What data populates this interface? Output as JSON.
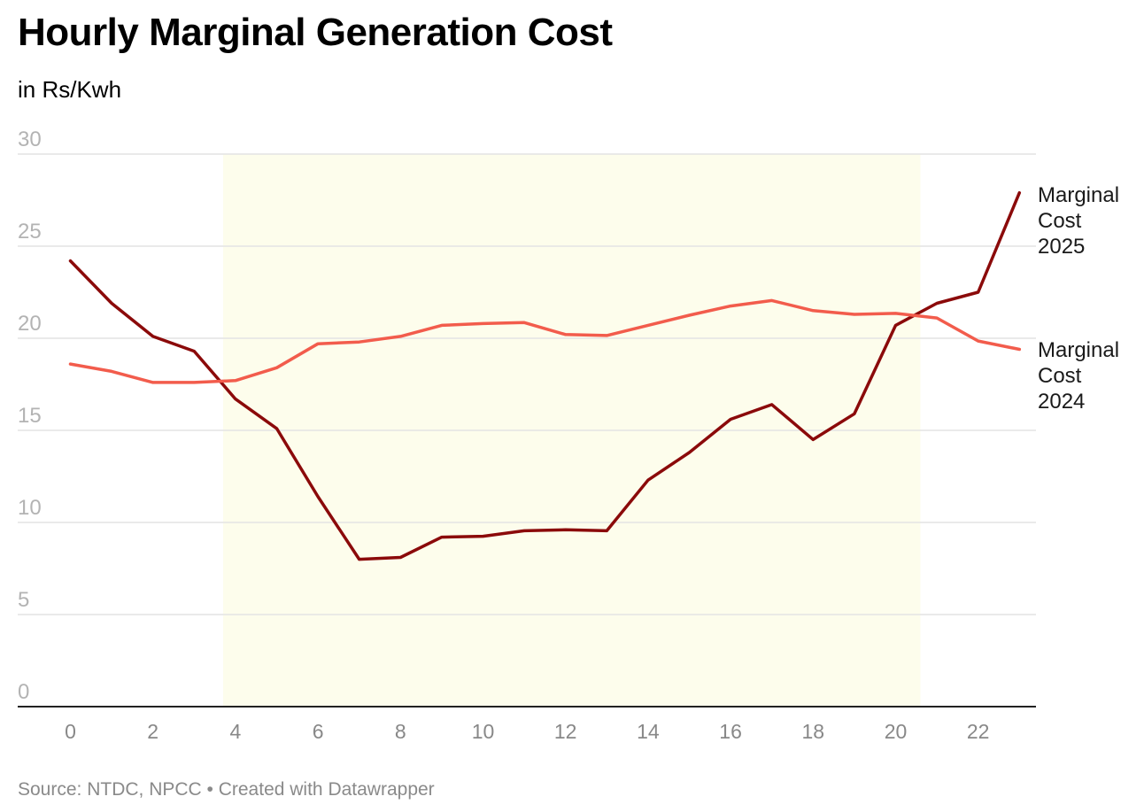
{
  "header": {
    "title": "Hourly Marginal Generation Cost",
    "subtitle": "in Rs/Kwh"
  },
  "footer": {
    "source": "Source: NTDC, NPCC • Created with Datawrapper"
  },
  "chart_data": {
    "type": "line",
    "title": "Hourly Marginal Generation Cost",
    "subtitle": "in Rs/Kwh",
    "xlabel": "",
    "ylabel": "",
    "x": [
      0,
      1,
      2,
      3,
      4,
      5,
      6,
      7,
      8,
      9,
      10,
      11,
      12,
      13,
      14,
      15,
      16,
      17,
      18,
      19,
      20,
      21,
      22,
      23
    ],
    "x_ticks": [
      0,
      2,
      4,
      6,
      8,
      10,
      12,
      14,
      16,
      18,
      20,
      22
    ],
    "y_ticks": [
      0,
      5,
      10,
      15,
      20,
      25,
      30
    ],
    "xlim": [
      -0.6,
      23.5
    ],
    "ylim": [
      0,
      30
    ],
    "grid": true,
    "highlight_band": {
      "x_start": 3.7,
      "x_end": 20.6,
      "color": "#fdfdec"
    },
    "series": [
      {
        "name": "Marginal Cost 2025",
        "label_lines": [
          "Marginal",
          "Cost",
          "2025"
        ],
        "color": "#8b0a0a",
        "values": [
          24.2,
          21.9,
          20.1,
          19.3,
          16.7,
          15.1,
          11.4,
          8.0,
          8.1,
          9.2,
          9.25,
          9.55,
          9.6,
          9.55,
          12.3,
          13.8,
          15.6,
          16.4,
          14.5,
          15.9,
          20.7,
          21.9,
          22.5,
          27.9
        ]
      },
      {
        "name": "Marginal Cost 2024",
        "label_lines": [
          "Marginal",
          "Cost",
          "2024"
        ],
        "color": "#f25c4c",
        "values": [
          18.6,
          18.2,
          17.6,
          17.6,
          17.7,
          18.4,
          19.7,
          19.8,
          20.1,
          20.7,
          20.8,
          20.85,
          20.2,
          20.15,
          20.7,
          21.25,
          21.75,
          22.05,
          21.5,
          21.3,
          21.35,
          21.1,
          19.85,
          19.4
        ]
      }
    ]
  }
}
